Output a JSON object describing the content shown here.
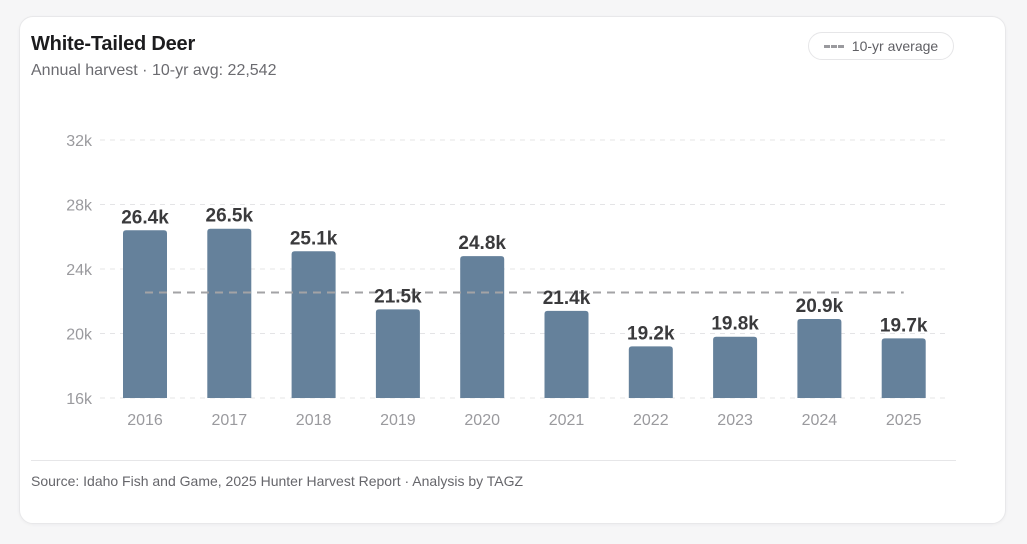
{
  "header": {
    "title": "White-Tailed Deer",
    "subtitle": "Annual harvest · 10-yr avg: 22,542"
  },
  "legend": {
    "label": "10-yr average"
  },
  "footer": {
    "source": "Source: Idaho Fish and Game, 2025 Hunter Harvest Report · Analysis by TAGZ"
  },
  "colors": {
    "bar": "#65819b",
    "avg_line": "#a3a3a6",
    "grid": "#e4e4e6",
    "label": "#3a3a3c",
    "tick": "#9a9a9e"
  },
  "chart_data": {
    "type": "bar",
    "title": "White-Tailed Deer",
    "subtitle": "Annual harvest · 10-yr avg: 22,542",
    "xlabel": "",
    "ylabel": "",
    "categories": [
      "2016",
      "2017",
      "2018",
      "2019",
      "2020",
      "2021",
      "2022",
      "2023",
      "2024",
      "2025"
    ],
    "values": [
      26400,
      26500,
      25100,
      21500,
      24800,
      21400,
      19200,
      19800,
      20900,
      19700
    ],
    "data_labels": [
      "26.4k",
      "26.5k",
      "25.1k",
      "21.5k",
      "24.8k",
      "21.4k",
      "19.2k",
      "19.8k",
      "20.9k",
      "19.7k"
    ],
    "ylim": [
      16000,
      32000
    ],
    "yticks": [
      16000,
      20000,
      24000,
      28000,
      32000
    ],
    "ytick_labels": [
      "16k",
      "20k",
      "24k",
      "28k",
      "32k"
    ],
    "reference_line": {
      "name": "10-yr average",
      "value": 22542,
      "style": "dashed"
    },
    "grid": true,
    "legend_position": "top-right"
  }
}
